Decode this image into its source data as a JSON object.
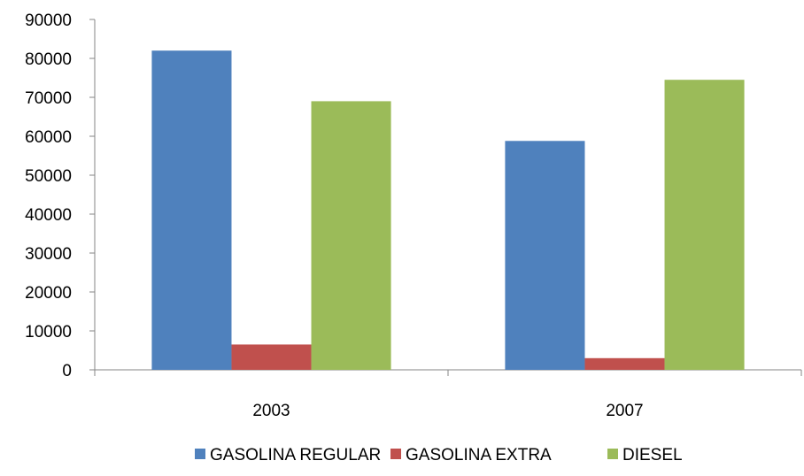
{
  "chart_data": {
    "type": "bar",
    "title": "",
    "xlabel": "",
    "ylabel": "",
    "categories": [
      "2003",
      "2007"
    ],
    "series": [
      {
        "name": "GASOLINA REGULAR",
        "color": "#4F81BD",
        "values": [
          82000,
          58800
        ]
      },
      {
        "name": "GASOLINA EXTRA",
        "color": "#C0504D",
        "values": [
          6500,
          3000
        ]
      },
      {
        "name": "DIESEL",
        "color": "#9BBB59",
        "values": [
          69000,
          74500
        ]
      }
    ],
    "ylim": [
      0,
      90000
    ],
    "yticks": [
      0,
      10000,
      20000,
      30000,
      40000,
      50000,
      60000,
      70000,
      80000,
      90000
    ],
    "grid": false,
    "legend_position": "bottom"
  }
}
